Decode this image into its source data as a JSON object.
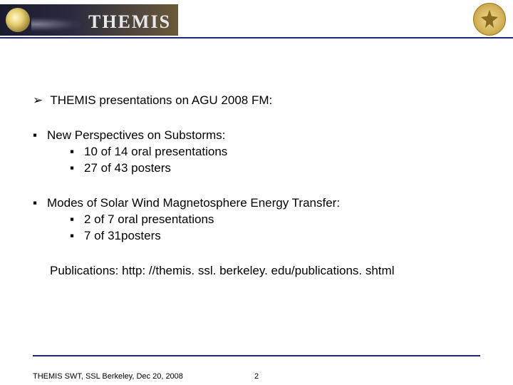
{
  "header": {
    "banner_title": "THEMIS"
  },
  "content": {
    "main": {
      "bullet": "➢",
      "text": "THEMIS presentations on AGU 2008 FM:"
    },
    "sections": [
      {
        "bullet": "▪",
        "title": "New Perspectives on Substorms:",
        "items": [
          {
            "bullet": "▪",
            "text": "10 of 14 oral presentations"
          },
          {
            "bullet": "▪",
            "text": "27 of 43 posters"
          }
        ]
      },
      {
        "bullet": "▪",
        "title": "Modes of Solar Wind Magnetosphere Energy Transfer:",
        "items": [
          {
            "bullet": "▪",
            "text": "2 of 7 oral presentations"
          },
          {
            "bullet": "▪",
            "text": "7 of 31posters"
          }
        ]
      }
    ],
    "publications": "Publications: http: //themis. ssl. berkeley. edu/publications. shtml"
  },
  "footer": {
    "left": "THEMIS SWT, SSL Berkeley, Dec 20, 2008",
    "page": "2"
  },
  "colors": {
    "rule": "#1a2a6a",
    "text": "#000000",
    "background": "#ffffff"
  }
}
